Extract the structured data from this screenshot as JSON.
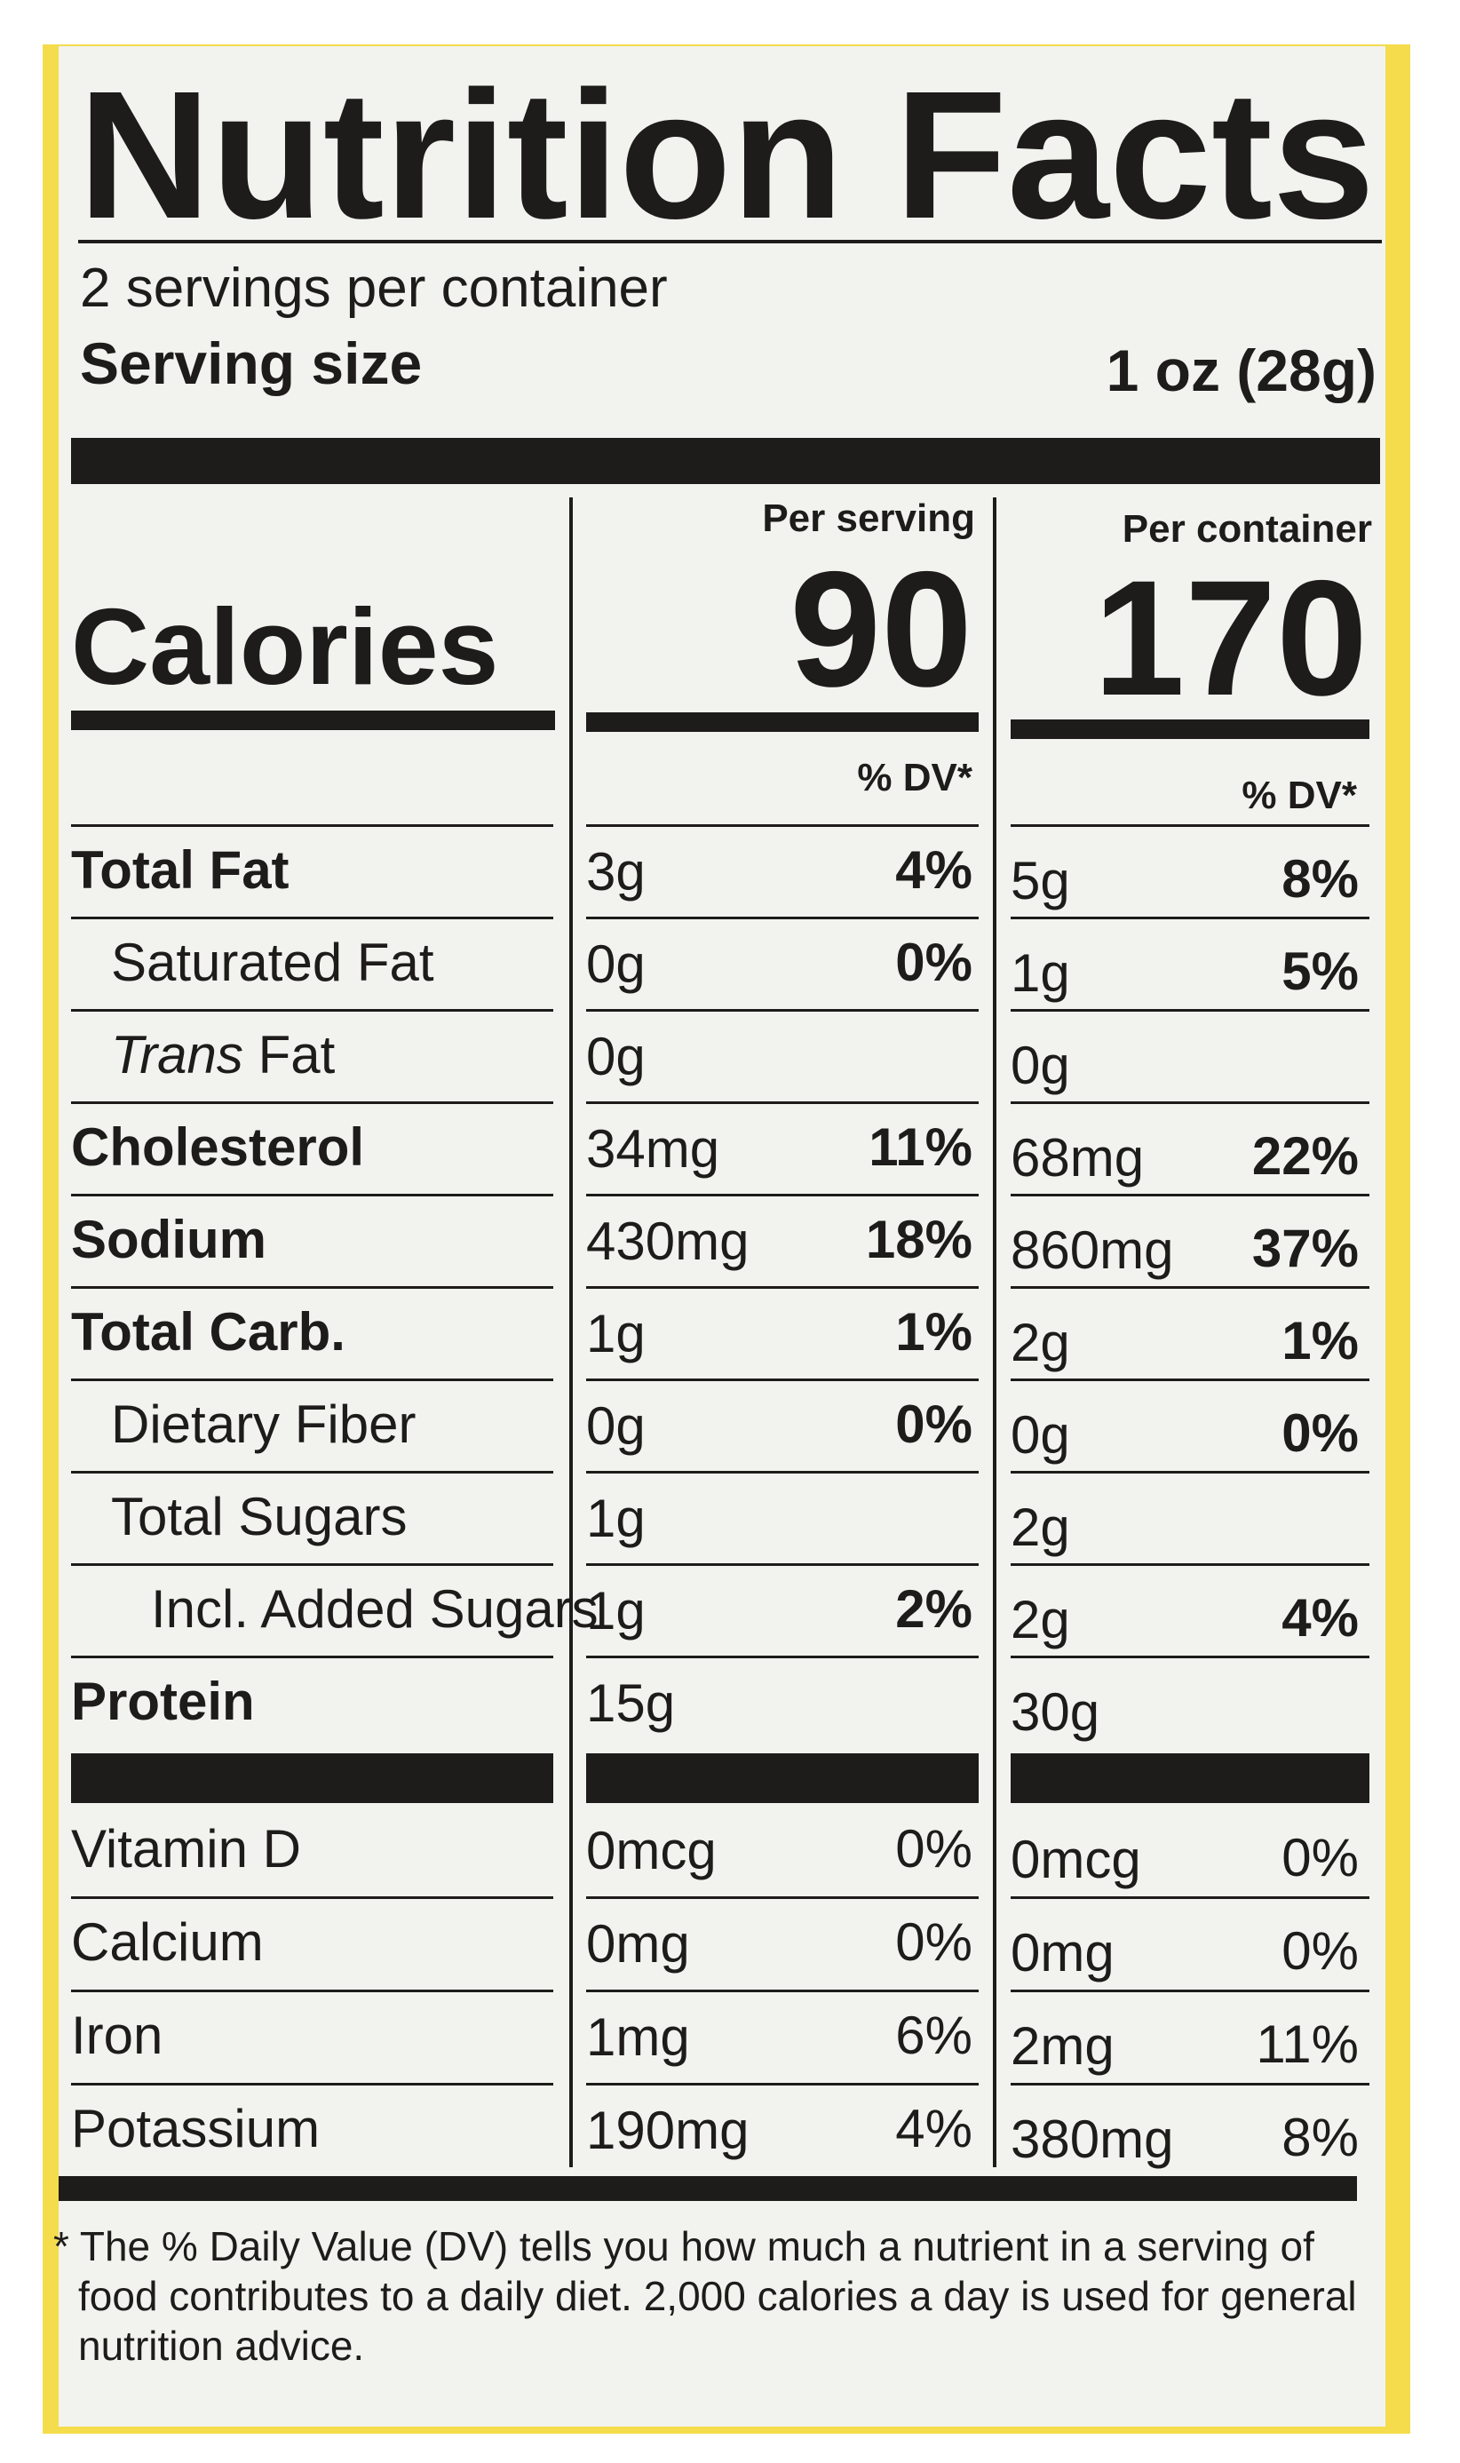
{
  "title": "Nutrition Facts",
  "servings_per_container": "2 servings per container",
  "serving_size": {
    "label": "Serving size",
    "value": "1 oz (28g)"
  },
  "calories": {
    "label": "Calories",
    "per_serving_header": "Per serving",
    "per_serving": "90",
    "per_container_header": "Per container",
    "per_container": "170"
  },
  "dv_header": "% DV*",
  "nutrients": [
    {
      "name": "Total Fat",
      "bold": true,
      "indent": 0,
      "serving": {
        "amount": "3g",
        "dv": "4%"
      },
      "container": {
        "amount": "5g",
        "dv": "8%"
      }
    },
    {
      "name": "Saturated Fat",
      "bold": false,
      "indent": 1,
      "serving": {
        "amount": "0g",
        "dv": "0%"
      },
      "container": {
        "amount": "1g",
        "dv": "5%"
      }
    },
    {
      "italic_prefix": "Trans",
      "name": "Fat",
      "bold": false,
      "indent": 1,
      "serving": {
        "amount": "0g"
      },
      "container": {
        "amount": "0g"
      }
    },
    {
      "name": "Cholesterol",
      "bold": true,
      "indent": 0,
      "serving": {
        "amount": "34mg",
        "dv": "11%"
      },
      "container": {
        "amount": "68mg",
        "dv": "22%"
      }
    },
    {
      "name": "Sodium",
      "bold": true,
      "indent": 0,
      "serving": {
        "amount": "430mg",
        "dv": "18%"
      },
      "container": {
        "amount": "860mg",
        "dv": "37%"
      }
    },
    {
      "name": "Total Carb.",
      "bold": true,
      "indent": 0,
      "serving": {
        "amount": "1g",
        "dv": "1%"
      },
      "container": {
        "amount": "2g",
        "dv": "1%"
      }
    },
    {
      "name": "Dietary Fiber",
      "bold": false,
      "indent": 1,
      "serving": {
        "amount": "0g",
        "dv": "0%"
      },
      "container": {
        "amount": "0g",
        "dv": "0%"
      }
    },
    {
      "name": "Total Sugars",
      "bold": false,
      "indent": 1,
      "serving": {
        "amount": "1g"
      },
      "container": {
        "amount": "2g"
      }
    },
    {
      "name": "Incl. Added Sugars",
      "bold": false,
      "indent": 2,
      "serving": {
        "amount": "1g",
        "dv": "2%"
      },
      "container": {
        "amount": "2g",
        "dv": "4%"
      }
    },
    {
      "name": "Protein",
      "bold": true,
      "indent": 0,
      "serving": {
        "amount": "15g"
      },
      "container": {
        "amount": "30g"
      }
    }
  ],
  "vitamins": [
    {
      "name": "Vitamin D",
      "serving": {
        "amount": "0mcg",
        "dv": "0%"
      },
      "container": {
        "amount": "0mcg",
        "dv": "0%"
      }
    },
    {
      "name": "Calcium",
      "serving": {
        "amount": "0mg",
        "dv": "0%"
      },
      "container": {
        "amount": "0mg",
        "dv": "0%"
      }
    },
    {
      "name": "Iron",
      "serving": {
        "amount": "1mg",
        "dv": "6%"
      },
      "container": {
        "amount": "2mg",
        "dv": "11%"
      }
    },
    {
      "name": "Potassium",
      "serving": {
        "amount": "190mg",
        "dv": "4%"
      },
      "container": {
        "amount": "380mg",
        "dv": "8%"
      }
    }
  ],
  "footnote": [
    "* The % Daily Value (DV) tells you how much a nutrient in a serving of",
    "food contributes to a daily diet. 2,000 calories a day is used for general",
    "nutrition advice."
  ]
}
